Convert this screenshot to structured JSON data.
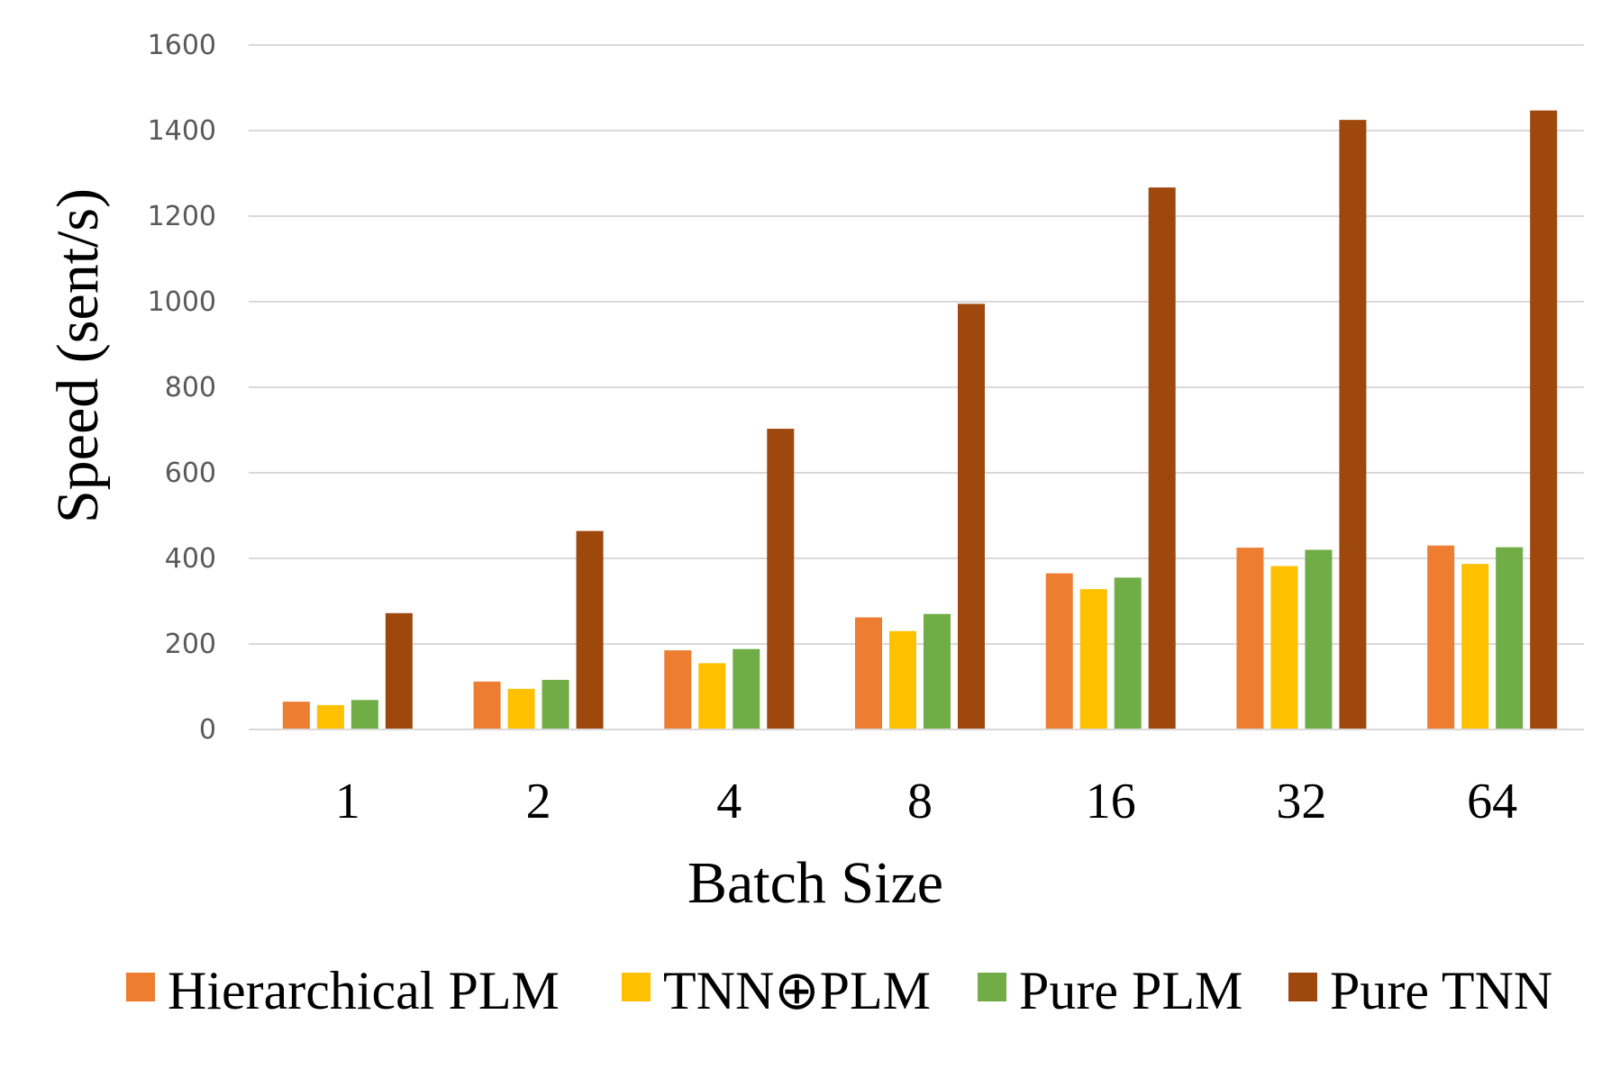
{
  "chart_data": {
    "type": "bar",
    "title": "",
    "xlabel": "Batch Size",
    "ylabel": "Speed (sent/s)",
    "categories": [
      "1",
      "2",
      "4",
      "8",
      "16",
      "32",
      "64"
    ],
    "ylim": [
      0,
      1600
    ],
    "yticks": [
      "0",
      "200",
      "400",
      "600",
      "800",
      "1000",
      "1200",
      "1400",
      "1600"
    ],
    "grid": true,
    "legend_position": "bottom",
    "series": [
      {
        "name": "Hierarchical PLM",
        "color": "#ED7D31",
        "values": [
          65,
          112,
          185,
          262,
          365,
          425,
          430
        ]
      },
      {
        "name": "TNN⊕PLM",
        "color": "#FFC000",
        "values": [
          57,
          95,
          155,
          230,
          328,
          382,
          387
        ]
      },
      {
        "name": "Pure PLM",
        "color": "#70AD47",
        "values": [
          69,
          116,
          188,
          270,
          355,
          420,
          426
        ]
      },
      {
        "name": "Pure TNN",
        "color": "#9E480E",
        "values": [
          272,
          464,
          703,
          995,
          1267,
          1425,
          1447
        ]
      }
    ]
  }
}
